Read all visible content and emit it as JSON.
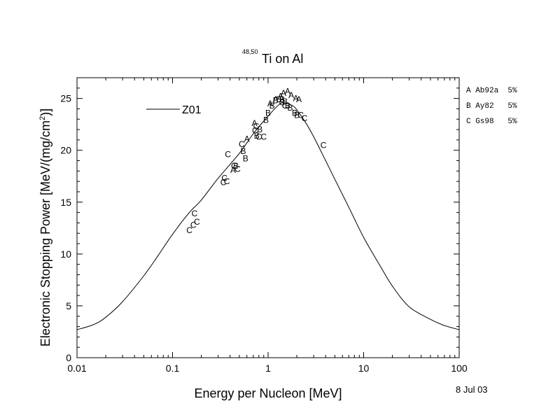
{
  "chart_data": {
    "type": "scatter",
    "title_superscript": "48,50",
    "title_main": "Ti on Al",
    "xlabel": "Energy per Nucleon [MeV]",
    "ylabel_main": "Electronic Stopping Power [MeV/(mg/cm",
    "ylabel_sup": "2",
    "ylabel_end": ")]",
    "x_scale": "log",
    "xlim": [
      0.01,
      100
    ],
    "ylim": [
      0,
      27
    ],
    "x_ticks": [
      0.01,
      0.1,
      1,
      10,
      100
    ],
    "x_tick_labels": [
      "0.01",
      "0.1",
      "1",
      "10",
      "100"
    ],
    "y_ticks": [
      0,
      5,
      10,
      15,
      20,
      25
    ],
    "y_tick_labels": [
      "0",
      "5",
      "10",
      "15",
      "20",
      "25"
    ],
    "grid": false,
    "date_note": "8 Jul 03",
    "curve": {
      "name": "Z01",
      "x": [
        0.01,
        0.015,
        0.02,
        0.03,
        0.05,
        0.07,
        0.1,
        0.15,
        0.2,
        0.3,
        0.5,
        0.7,
        1.0,
        1.3,
        1.5,
        1.8,
        2.0,
        2.5,
        3.0,
        4.0,
        5.0,
        7.0,
        10,
        15,
        20,
        30,
        50,
        70,
        100
      ],
      "y": [
        2.7,
        3.2,
        3.9,
        5.4,
        7.9,
        9.8,
        11.9,
        14.0,
        15.2,
        17.3,
        19.7,
        21.6,
        23.3,
        24.4,
        24.6,
        24.3,
        23.9,
        22.6,
        21.3,
        19.0,
        17.2,
        14.5,
        11.6,
        8.8,
        6.9,
        4.9,
        3.7,
        3.1,
        2.7
      ]
    },
    "legend_entries": [
      {
        "letter": "A",
        "text": "A Ab92a  5%"
      },
      {
        "letter": "B",
        "text": "B Ay82   5%"
      },
      {
        "letter": "C",
        "text": "C Gs98   5%"
      }
    ],
    "points": {
      "A": {
        "x": [
          0.43,
          0.6,
          0.72,
          1.05,
          1.2,
          1.35,
          1.45,
          1.6,
          1.75,
          1.95,
          2.1
        ],
        "y": [
          18.1,
          21.1,
          22.6,
          24.5,
          24.9,
          25.2,
          25.5,
          25.7,
          25.3,
          25.0,
          24.9
        ]
      },
      "B": {
        "x": [
          0.46,
          0.55,
          0.58,
          0.76,
          0.82,
          0.95,
          1.0,
          1.1,
          1.2,
          1.3,
          1.4,
          1.5,
          1.6,
          1.7,
          1.9,
          2.0
        ],
        "y": [
          18.5,
          19.9,
          19.2,
          21.4,
          22.0,
          22.9,
          23.6,
          24.3,
          24.8,
          24.9,
          24.9,
          24.7,
          24.3,
          24.1,
          23.6,
          23.4
        ]
      },
      "C": {
        "x": [
          0.15,
          0.165,
          0.17,
          0.18,
          0.34,
          0.35,
          0.37,
          0.38,
          0.44,
          0.48,
          0.53,
          0.73,
          0.75,
          0.8,
          0.9,
          1.4,
          1.5,
          2.2,
          2.4,
          3.8
        ],
        "y": [
          12.3,
          12.8,
          13.9,
          13.1,
          16.9,
          17.3,
          17.0,
          19.6,
          18.5,
          18.2,
          20.6,
          21.9,
          22.3,
          21.3,
          21.3,
          24.6,
          24.3,
          23.4,
          23.1,
          20.5
        ]
      }
    }
  }
}
